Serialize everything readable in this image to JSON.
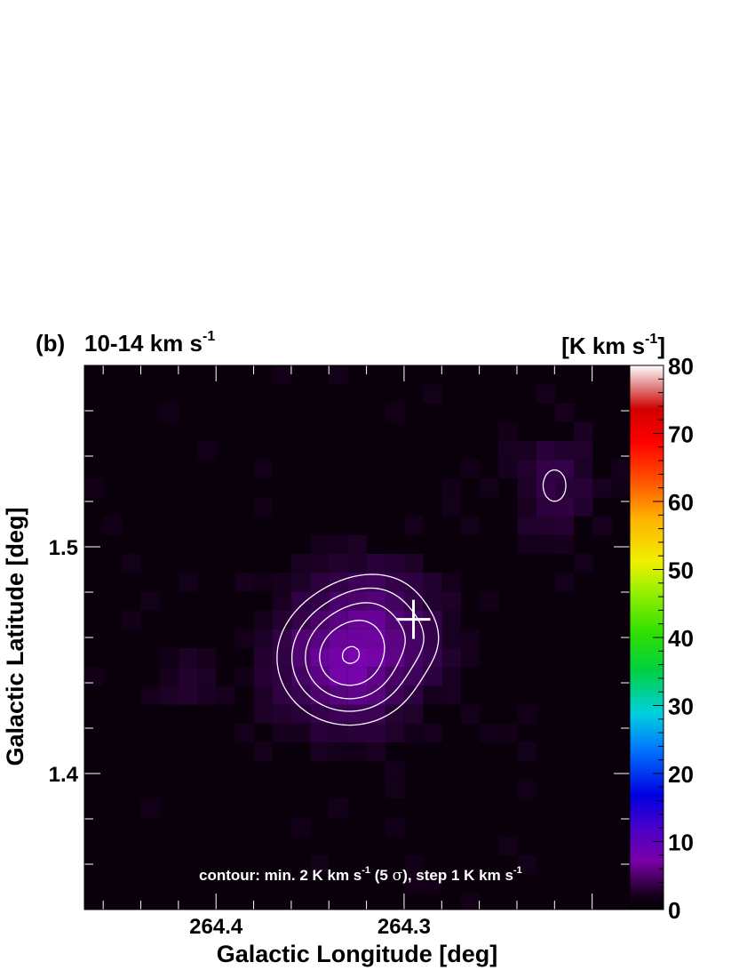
{
  "panel_label": "(b)",
  "title": "10-14 km s",
  "title_sup": "-1",
  "colorbar": {
    "unit_label": "[K km s",
    "unit_sup": "-1",
    "unit_close": "]",
    "ticks": [
      0,
      10,
      20,
      30,
      40,
      50,
      60,
      70,
      80
    ],
    "range": [
      0,
      80
    ]
  },
  "xlabel": "Galactic Longitude [deg]",
  "ylabel": "Galactic Latitude [deg]",
  "contour_note": {
    "part1": "contour: min. 2 K km s",
    "sup1": "-1",
    "part2": " (5 ",
    "sigma": "σ",
    "part3": "), step 1 K km s",
    "sup2": "-1"
  },
  "chart_data": {
    "type": "heatmap",
    "title": "10-14 km s-1",
    "xlabel": "Galactic Longitude [deg]",
    "ylabel": "Galactic Latitude [deg]",
    "xlim": [
      264.47,
      264.18
    ],
    "ylim": [
      1.34,
      1.58
    ],
    "xticks": [
      264.4,
      264.3
    ],
    "yticks": [
      1.4,
      1.5
    ],
    "color_scale": {
      "min": 0,
      "max": 80,
      "unit": "K km s-1"
    },
    "contour_levels": [
      2,
      3,
      4,
      5,
      6
    ],
    "peak": {
      "l": 264.329,
      "b": 1.451,
      "value": 6.5
    },
    "marker": {
      "shape": "cross",
      "l": 264.295,
      "b": 1.468
    },
    "blobs": [
      {
        "l": 264.329,
        "b": 1.451,
        "sl": 0.026,
        "sb": 0.02,
        "amp": 6.0
      },
      {
        "l": 264.31,
        "b": 1.478,
        "sl": 0.02,
        "sb": 0.012,
        "amp": 1.5
      },
      {
        "l": 264.29,
        "b": 1.46,
        "sl": 0.012,
        "sb": 0.01,
        "amp": 1.0
      },
      {
        "l": 264.22,
        "b": 1.527,
        "sl": 0.014,
        "sb": 0.016,
        "amp": 2.2
      },
      {
        "l": 264.415,
        "b": 1.442,
        "sl": 0.01,
        "sb": 0.008,
        "amp": 1.2
      }
    ]
  }
}
